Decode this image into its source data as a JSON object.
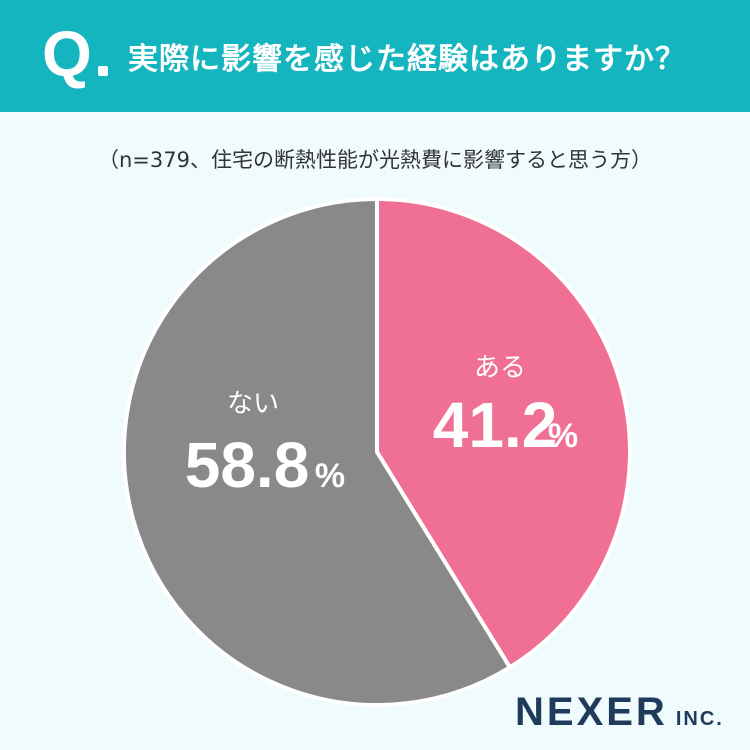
{
  "header": {
    "q_label": "Q",
    "question": "実際に影響を感じた経験はありますか？"
  },
  "note": "（n=379、住宅の断熱性能が光熱費に影響すると思う方）",
  "colors": {
    "header": "#15b5bf",
    "background": "#effbfc",
    "aru": "#f07095",
    "nai": "#898989"
  },
  "chart_data": {
    "type": "pie",
    "slices": [
      {
        "label": "ある",
        "value": 41.2,
        "display": "41.2",
        "unit": "%",
        "color": "#f07095"
      },
      {
        "label": "ない",
        "value": 58.8,
        "display": "58.8",
        "unit": "%",
        "color": "#898989"
      }
    ]
  },
  "logo": {
    "main": "NEXER",
    "sub": "INC."
  }
}
